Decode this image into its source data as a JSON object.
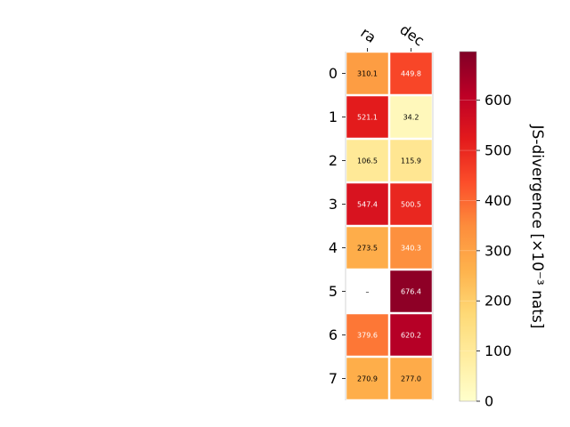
{
  "chart_data": {
    "type": "heatmap",
    "columns": [
      "ra",
      "dec"
    ],
    "rows": [
      "0",
      "1",
      "2",
      "3",
      "4",
      "5",
      "6",
      "7"
    ],
    "values": [
      [
        310.1,
        449.8
      ],
      [
        521.1,
        34.2
      ],
      [
        106.5,
        115.9
      ],
      [
        547.4,
        500.5
      ],
      [
        273.5,
        340.3
      ],
      [
        null,
        676.4
      ],
      [
        379.6,
        620.2
      ],
      [
        270.9,
        277.0
      ]
    ],
    "cell_labels": [
      [
        "310.1",
        "449.8"
      ],
      [
        "521.1",
        "34.2"
      ],
      [
        "106.5",
        "115.9"
      ],
      [
        "547.4",
        "500.5"
      ],
      [
        "273.5",
        "340.3"
      ],
      [
        "–",
        "676.4"
      ],
      [
        "379.6",
        "620.2"
      ],
      [
        "270.9",
        "277.0"
      ]
    ],
    "colorbar": {
      "label": "JS-divergence [×10⁻³ nats]",
      "range": [
        0,
        697
      ],
      "ticks": [
        0,
        100,
        200,
        300,
        400,
        500,
        600
      ],
      "tick_labels": [
        "0",
        "100",
        "200",
        "300",
        "400",
        "500",
        "600"
      ],
      "colormap": "YlOrRd"
    },
    "grid": false
  }
}
